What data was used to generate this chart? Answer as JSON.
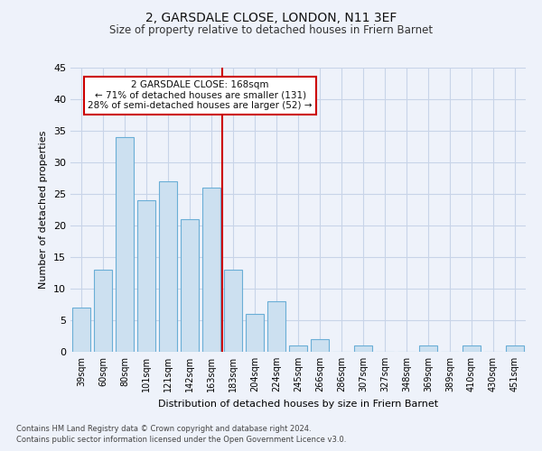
{
  "title1": "2, GARSDALE CLOSE, LONDON, N11 3EF",
  "title2": "Size of property relative to detached houses in Friern Barnet",
  "xlabel": "Distribution of detached houses by size in Friern Barnet",
  "ylabel": "Number of detached properties",
  "categories": [
    "39sqm",
    "60sqm",
    "80sqm",
    "101sqm",
    "121sqm",
    "142sqm",
    "163sqm",
    "183sqm",
    "204sqm",
    "224sqm",
    "245sqm",
    "266sqm",
    "286sqm",
    "307sqm",
    "327sqm",
    "348sqm",
    "369sqm",
    "389sqm",
    "410sqm",
    "430sqm",
    "451sqm"
  ],
  "values": [
    7,
    13,
    34,
    24,
    27,
    21,
    26,
    13,
    6,
    8,
    1,
    2,
    0,
    1,
    0,
    0,
    1,
    0,
    1,
    0,
    1
  ],
  "bar_color": "#cce0f0",
  "bar_edge_color": "#6aaed6",
  "grid_color": "#c8d4e8",
  "vline_x": 6.5,
  "vline_color": "#cc0000",
  "annotation_text": "2 GARSDALE CLOSE: 168sqm\n← 71% of detached houses are smaller (131)\n28% of semi-detached houses are larger (52) →",
  "annotation_box_facecolor": "#ffffff",
  "annotation_border_color": "#cc0000",
  "footnote1": "Contains HM Land Registry data © Crown copyright and database right 2024.",
  "footnote2": "Contains public sector information licensed under the Open Government Licence v3.0.",
  "ylim": [
    0,
    45
  ],
  "yticks": [
    0,
    5,
    10,
    15,
    20,
    25,
    30,
    35,
    40,
    45
  ],
  "bg_color": "#eef2fa"
}
